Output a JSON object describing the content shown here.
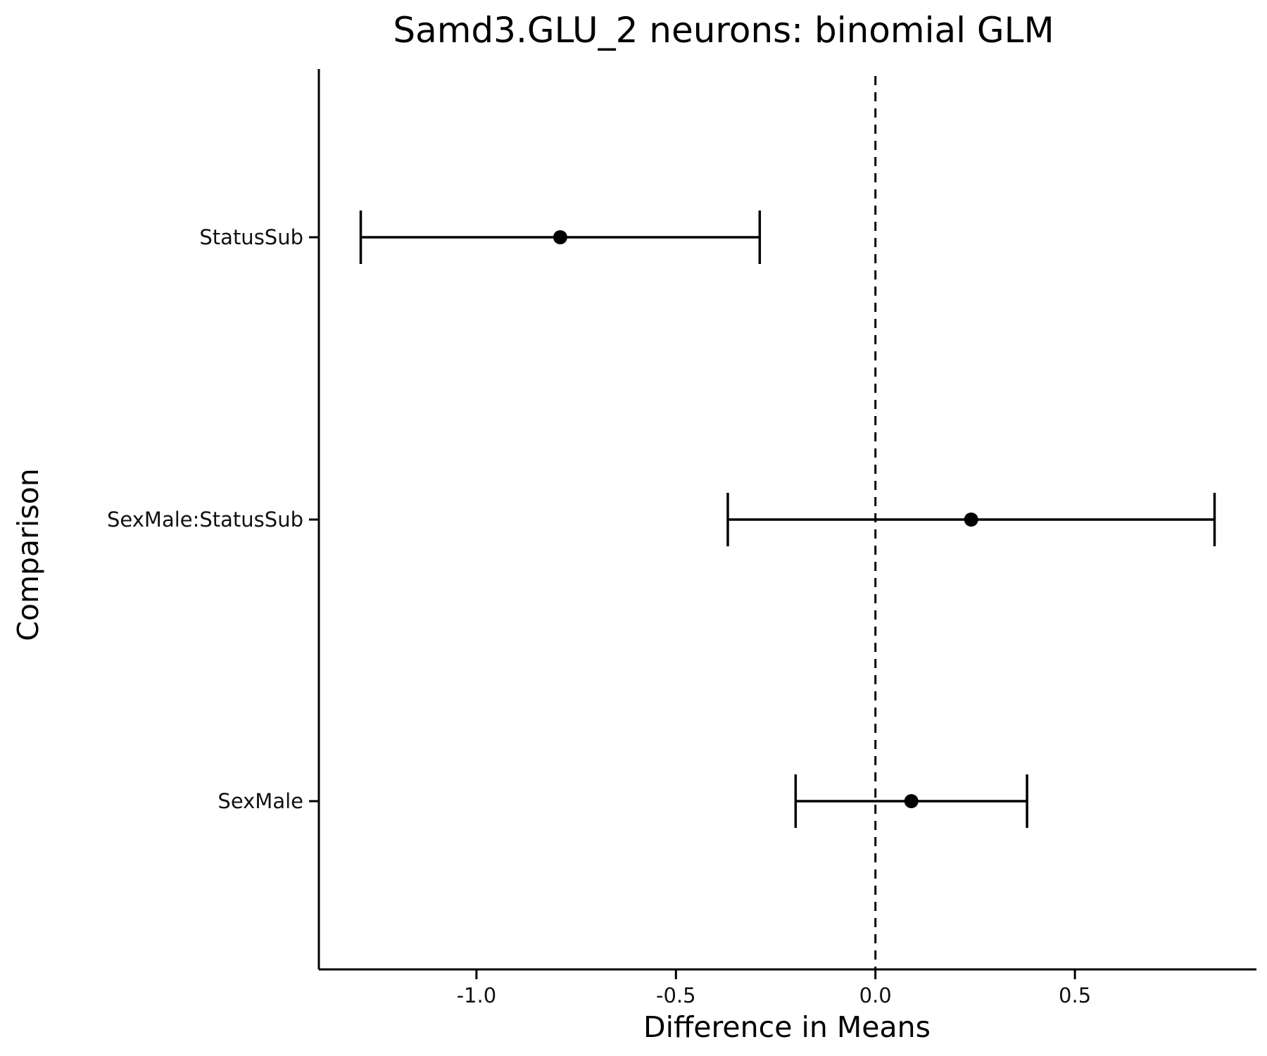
{
  "chart_data": {
    "type": "scatter",
    "subtype": "forest-plot-with-error-bars",
    "title": "Samd3.GLU_2 neurons: binomial GLM",
    "xlabel": "Difference in Means",
    "ylabel": "Comparison",
    "xlim": [
      -1.395,
      0.955
    ],
    "x_ticks": [
      -1.0,
      -0.5,
      0.0,
      0.5
    ],
    "x_tick_labels": [
      "-1.0",
      "-0.5",
      "0.0",
      "0.5"
    ],
    "categories": [
      "StatusSub",
      "SexMale:StatusSub",
      "SexMale"
    ],
    "points": [
      {
        "label": "StatusSub",
        "estimate": -0.79,
        "lower": -1.29,
        "upper": -0.29
      },
      {
        "label": "SexMale:StatusSub",
        "estimate": 0.24,
        "lower": -0.37,
        "upper": 0.85
      },
      {
        "label": "SexMale",
        "estimate": 0.09,
        "lower": -0.2,
        "upper": 0.38
      }
    ],
    "reference_line": {
      "x": 0,
      "style": "dashed"
    },
    "grid": false,
    "legend": "none",
    "colors": {
      "background": "#ffffff",
      "axis": "#000000",
      "marks": "#000000"
    }
  }
}
